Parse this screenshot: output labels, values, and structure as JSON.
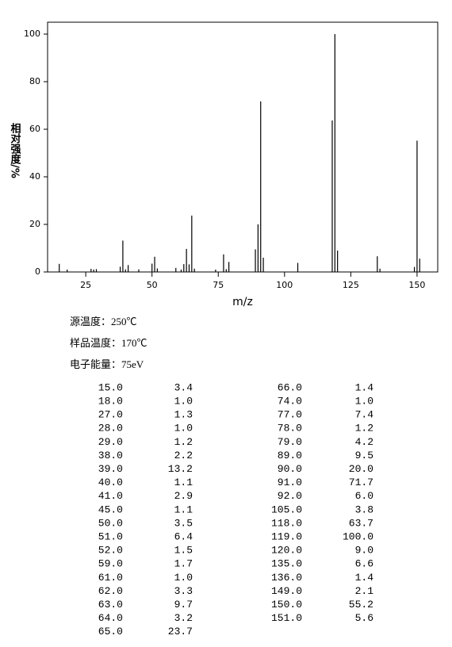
{
  "chart_data": {
    "type": "bar",
    "x": [
      15,
      18,
      27,
      28,
      29,
      38,
      39,
      40,
      41,
      45,
      50,
      51,
      52,
      59,
      61,
      62,
      63,
      64,
      65,
      66,
      74,
      77,
      78,
      79,
      89,
      90,
      91,
      92,
      105,
      118,
      119,
      120,
      135,
      136,
      149,
      150,
      151
    ],
    "values": [
      3.4,
      1.0,
      1.3,
      1.0,
      1.2,
      2.2,
      13.2,
      1.1,
      2.9,
      1.1,
      3.5,
      6.4,
      1.5,
      1.7,
      1.0,
      3.3,
      9.7,
      3.2,
      23.7,
      1.4,
      1.0,
      7.4,
      1.2,
      4.2,
      9.5,
      20.0,
      71.7,
      6.0,
      3.8,
      63.7,
      100.0,
      9.0,
      6.6,
      1.4,
      2.1,
      55.2,
      5.6
    ],
    "x_labels": [
      "15.0",
      "18.0",
      "27.0",
      "28.0",
      "29.0",
      "38.0",
      "39.0",
      "40.0",
      "41.0",
      "45.0",
      "50.0",
      "51.0",
      "52.0",
      "59.0",
      "61.0",
      "62.0",
      "63.0",
      "64.0",
      "65.0",
      "66.0",
      "74.0",
      "77.0",
      "78.0",
      "79.0",
      "89.0",
      "90.0",
      "91.0",
      "92.0",
      "105.0",
      "118.0",
      "119.0",
      "120.0",
      "135.0",
      "136.0",
      "149.0",
      "150.0",
      "151.0"
    ],
    "value_labels": [
      "3.4",
      "1.0",
      "1.3",
      "1.0",
      "1.2",
      "2.2",
      "13.2",
      "1.1",
      "2.9",
      "1.1",
      "3.5",
      "6.4",
      "1.5",
      "1.7",
      "1.0",
      "3.3",
      "9.7",
      "3.2",
      "23.7",
      "1.4",
      "1.0",
      "7.4",
      "1.2",
      "4.2",
      "9.5",
      "20.0",
      "71.7",
      "6.0",
      "3.8",
      "63.7",
      "100.0",
      "9.0",
      "6.6",
      "1.4",
      "2.1",
      "55.2",
      "5.6"
    ],
    "color": "#000000",
    "xlabel": "m/z",
    "ylabel": "相对强度/%",
    "xlim": [
      10.6,
      157.8
    ],
    "ylim": [
      0,
      105
    ],
    "xticks": [
      25,
      50,
      75,
      100,
      125,
      150
    ],
    "yticks": [
      0,
      20,
      40,
      60,
      80,
      100
    ],
    "info": [
      "源温度：250℃",
      "样品温度：170℃",
      "电子能量：75eV"
    ]
  }
}
